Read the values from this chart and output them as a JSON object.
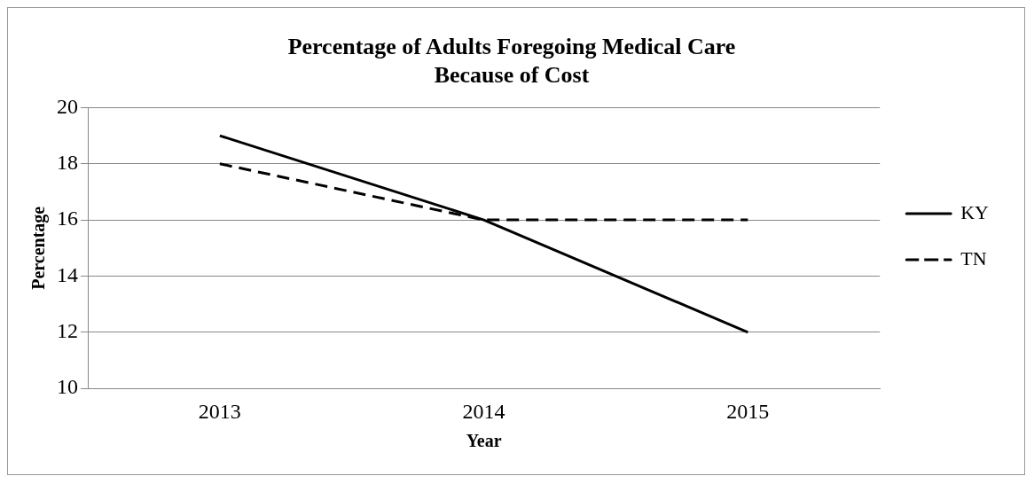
{
  "chart_data": {
    "type": "line",
    "title": [
      "Percentage of Adults Foregoing Medical Care",
      "Because of Cost"
    ],
    "xlabel": "Year",
    "ylabel": "Percentage",
    "categories": [
      "2013",
      "2014",
      "2015"
    ],
    "series": [
      {
        "name": "KY",
        "color": "#000000",
        "values": [
          19,
          16,
          12
        ],
        "line_style": "solid"
      },
      {
        "name": "TN",
        "color": "#000000",
        "values": [
          18,
          16,
          16
        ],
        "line_style": "dashed"
      }
    ],
    "ylim": [
      10,
      20
    ],
    "yticks": [
      10,
      12,
      14,
      16,
      18,
      20
    ],
    "grid": "y",
    "legend": "right",
    "marker": "none"
  }
}
